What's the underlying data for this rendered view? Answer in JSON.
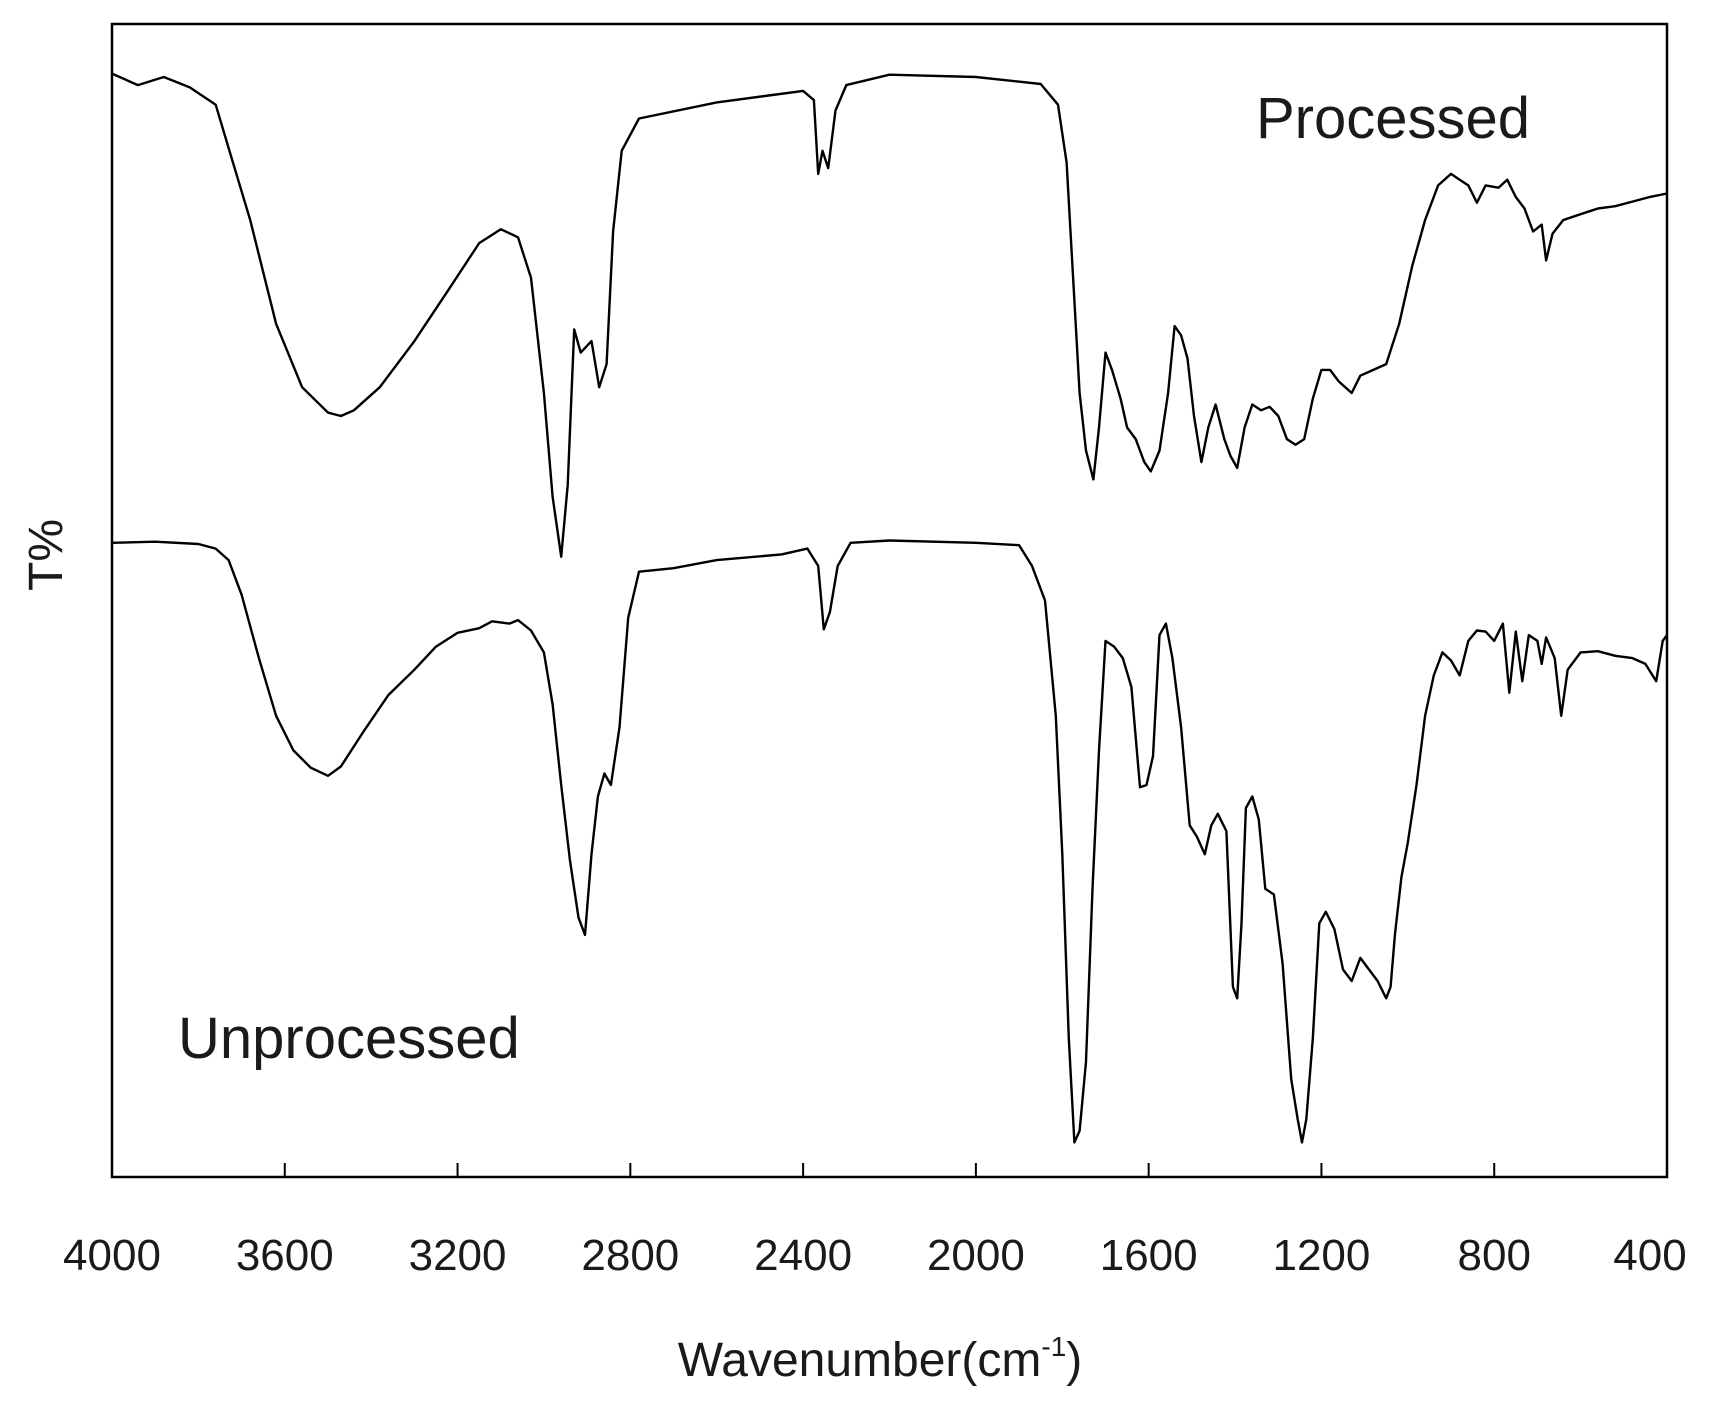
{
  "chart_data": {
    "type": "line",
    "title": "",
    "xlabel": "Wavenumber(cm",
    "xlabel_superscript": "-1",
    "xlabel_close": ")",
    "ylabel": "T%",
    "xlim": [
      4000,
      400
    ],
    "ylim": [
      0,
      100
    ],
    "x_reversed": true,
    "grid": false,
    "y_ticks_shown": false,
    "x_ticks": [
      {
        "value": 4000,
        "label": "4000"
      },
      {
        "value": 3600,
        "label": "3600"
      },
      {
        "value": 3200,
        "label": "3200"
      },
      {
        "value": 2800,
        "label": "2800"
      },
      {
        "value": 2400,
        "label": "2400"
      },
      {
        "value": 2000,
        "label": "2000"
      },
      {
        "value": 1600,
        "label": "1600"
      },
      {
        "value": 1200,
        "label": "1200"
      },
      {
        "value": 800,
        "label": "800"
      },
      {
        "value": 400,
        "label": "400"
      }
    ],
    "series": [
      {
        "name": "Processed",
        "color": "#000000",
        "label_position": "top-right",
        "points": [
          [
            4000,
            95.7
          ],
          [
            3940,
            94.7
          ],
          [
            3880,
            95.4
          ],
          [
            3820,
            94.5
          ],
          [
            3760,
            93.0
          ],
          [
            3720,
            88.0
          ],
          [
            3680,
            83.0
          ],
          [
            3620,
            74.0
          ],
          [
            3560,
            68.5
          ],
          [
            3500,
            66.3
          ],
          [
            3470,
            66.0
          ],
          [
            3440,
            66.5
          ],
          [
            3380,
            68.5
          ],
          [
            3300,
            72.5
          ],
          [
            3220,
            77.0
          ],
          [
            3150,
            81.0
          ],
          [
            3100,
            82.2
          ],
          [
            3060,
            81.5
          ],
          [
            3030,
            78.0
          ],
          [
            3000,
            68.0
          ],
          [
            2980,
            59.0
          ],
          [
            2960,
            53.8
          ],
          [
            2945,
            60.0
          ],
          [
            2930,
            73.5
          ],
          [
            2915,
            71.5
          ],
          [
            2890,
            72.5
          ],
          [
            2872,
            68.5
          ],
          [
            2855,
            70.5
          ],
          [
            2840,
            82.0
          ],
          [
            2820,
            89.0
          ],
          [
            2780,
            91.8
          ],
          [
            2600,
            93.2
          ],
          [
            2480,
            93.8
          ],
          [
            2400,
            94.2
          ],
          [
            2375,
            93.4
          ],
          [
            2365,
            87.0
          ],
          [
            2355,
            89.0
          ],
          [
            2342,
            87.5
          ],
          [
            2325,
            92.5
          ],
          [
            2300,
            94.7
          ],
          [
            2200,
            95.6
          ],
          [
            2000,
            95.4
          ],
          [
            1850,
            94.8
          ],
          [
            1810,
            93.0
          ],
          [
            1790,
            88.0
          ],
          [
            1775,
            78.0
          ],
          [
            1760,
            68.0
          ],
          [
            1745,
            63.0
          ],
          [
            1728,
            60.5
          ],
          [
            1715,
            65.0
          ],
          [
            1700,
            71.5
          ],
          [
            1685,
            70.0
          ],
          [
            1665,
            67.5
          ],
          [
            1650,
            65.0
          ],
          [
            1630,
            64.0
          ],
          [
            1610,
            62.0
          ],
          [
            1595,
            61.2
          ],
          [
            1575,
            63.0
          ],
          [
            1555,
            68.0
          ],
          [
            1540,
            73.8
          ],
          [
            1525,
            73.0
          ],
          [
            1510,
            71.0
          ],
          [
            1495,
            66.0
          ],
          [
            1478,
            62.0
          ],
          [
            1462,
            65.0
          ],
          [
            1445,
            67.0
          ],
          [
            1425,
            64.0
          ],
          [
            1410,
            62.5
          ],
          [
            1395,
            61.5
          ],
          [
            1378,
            65.0
          ],
          [
            1360,
            67.0
          ],
          [
            1340,
            66.5
          ],
          [
            1320,
            66.8
          ],
          [
            1300,
            66.0
          ],
          [
            1280,
            64.0
          ],
          [
            1260,
            63.5
          ],
          [
            1240,
            64.0
          ],
          [
            1220,
            67.5
          ],
          [
            1200,
            70.0
          ],
          [
            1180,
            70.0
          ],
          [
            1160,
            69.0
          ],
          [
            1130,
            68.0
          ],
          [
            1110,
            69.5
          ],
          [
            1080,
            70.0
          ],
          [
            1050,
            70.5
          ],
          [
            1020,
            74.0
          ],
          [
            990,
            79.0
          ],
          [
            960,
            83.0
          ],
          [
            930,
            86.0
          ],
          [
            900,
            87.0
          ],
          [
            880,
            86.5
          ],
          [
            860,
            86.0
          ],
          [
            840,
            84.5
          ],
          [
            820,
            86.0
          ],
          [
            790,
            85.8
          ],
          [
            770,
            86.5
          ],
          [
            750,
            85.0
          ],
          [
            730,
            84.0
          ],
          [
            710,
            82.0
          ],
          [
            690,
            82.6
          ],
          [
            680,
            79.5
          ],
          [
            665,
            81.8
          ],
          [
            640,
            83.0
          ],
          [
            600,
            83.5
          ],
          [
            560,
            84.0
          ],
          [
            520,
            84.2
          ],
          [
            480,
            84.6
          ],
          [
            440,
            85.0
          ],
          [
            400,
            85.3
          ]
        ]
      },
      {
        "name": "Unprocessed",
        "color": "#000000",
        "label_position": "bottom-left",
        "points": [
          [
            4000,
            55.0
          ],
          [
            3900,
            55.1
          ],
          [
            3800,
            54.9
          ],
          [
            3760,
            54.5
          ],
          [
            3730,
            53.5
          ],
          [
            3700,
            50.5
          ],
          [
            3660,
            45.0
          ],
          [
            3620,
            40.0
          ],
          [
            3580,
            37.0
          ],
          [
            3540,
            35.5
          ],
          [
            3500,
            34.8
          ],
          [
            3470,
            35.6
          ],
          [
            3420,
            38.5
          ],
          [
            3360,
            41.8
          ],
          [
            3300,
            44.0
          ],
          [
            3250,
            46.0
          ],
          [
            3200,
            47.2
          ],
          [
            3150,
            47.6
          ],
          [
            3120,
            48.2
          ],
          [
            3080,
            48.0
          ],
          [
            3060,
            48.3
          ],
          [
            3030,
            47.4
          ],
          [
            3000,
            45.5
          ],
          [
            2980,
            41.0
          ],
          [
            2960,
            34.0
          ],
          [
            2940,
            27.5
          ],
          [
            2920,
            22.5
          ],
          [
            2905,
            21.0
          ],
          [
            2890,
            28.0
          ],
          [
            2875,
            33.0
          ],
          [
            2860,
            35.0
          ],
          [
            2845,
            34.0
          ],
          [
            2825,
            39.0
          ],
          [
            2805,
            48.5
          ],
          [
            2780,
            52.5
          ],
          [
            2700,
            52.8
          ],
          [
            2600,
            53.5
          ],
          [
            2450,
            54.0
          ],
          [
            2390,
            54.5
          ],
          [
            2365,
            53.0
          ],
          [
            2352,
            47.5
          ],
          [
            2338,
            49.0
          ],
          [
            2320,
            53.0
          ],
          [
            2290,
            55.0
          ],
          [
            2200,
            55.2
          ],
          [
            2000,
            55.0
          ],
          [
            1900,
            54.8
          ],
          [
            1870,
            53.0
          ],
          [
            1840,
            50.0
          ],
          [
            1815,
            40.0
          ],
          [
            1800,
            28.0
          ],
          [
            1785,
            12.0
          ],
          [
            1772,
            3.0
          ],
          [
            1760,
            4.0
          ],
          [
            1745,
            10.0
          ],
          [
            1730,
            25.0
          ],
          [
            1715,
            37.0
          ],
          [
            1700,
            46.5
          ],
          [
            1680,
            46.0
          ],
          [
            1660,
            45.0
          ],
          [
            1640,
            42.5
          ],
          [
            1620,
            33.8
          ],
          [
            1605,
            34.0
          ],
          [
            1590,
            36.5
          ],
          [
            1575,
            47.0
          ],
          [
            1560,
            48.0
          ],
          [
            1545,
            45.0
          ],
          [
            1525,
            39.0
          ],
          [
            1505,
            30.5
          ],
          [
            1488,
            29.5
          ],
          [
            1470,
            28.0
          ],
          [
            1455,
            30.5
          ],
          [
            1440,
            31.5
          ],
          [
            1420,
            30.0
          ],
          [
            1405,
            16.5
          ],
          [
            1395,
            15.5
          ],
          [
            1385,
            22.0
          ],
          [
            1375,
            32.0
          ],
          [
            1360,
            33.0
          ],
          [
            1345,
            31.0
          ],
          [
            1330,
            25.0
          ],
          [
            1310,
            24.5
          ],
          [
            1290,
            18.5
          ],
          [
            1270,
            8.5
          ],
          [
            1255,
            5.0
          ],
          [
            1245,
            3.0
          ],
          [
            1235,
            5.0
          ],
          [
            1220,
            12.0
          ],
          [
            1205,
            22.0
          ],
          [
            1190,
            23.0
          ],
          [
            1170,
            21.5
          ],
          [
            1150,
            18.0
          ],
          [
            1130,
            17.0
          ],
          [
            1110,
            19.0
          ],
          [
            1090,
            18.0
          ],
          [
            1070,
            17.0
          ],
          [
            1050,
            15.5
          ],
          [
            1040,
            16.5
          ],
          [
            1030,
            21.0
          ],
          [
            1015,
            26.0
          ],
          [
            1000,
            29.0
          ],
          [
            980,
            34.0
          ],
          [
            960,
            40.0
          ],
          [
            940,
            43.5
          ],
          [
            920,
            45.5
          ],
          [
            900,
            44.8
          ],
          [
            880,
            43.5
          ],
          [
            860,
            46.5
          ],
          [
            840,
            47.4
          ],
          [
            820,
            47.3
          ],
          [
            800,
            46.5
          ],
          [
            780,
            48.0
          ],
          [
            765,
            42.0
          ],
          [
            750,
            47.3
          ],
          [
            735,
            43.0
          ],
          [
            720,
            47.0
          ],
          [
            700,
            46.5
          ],
          [
            690,
            44.5
          ],
          [
            680,
            46.8
          ],
          [
            660,
            45.0
          ],
          [
            645,
            40.0
          ],
          [
            630,
            44.0
          ],
          [
            600,
            45.5
          ],
          [
            560,
            45.6
          ],
          [
            520,
            45.2
          ],
          [
            480,
            45.0
          ],
          [
            450,
            44.5
          ],
          [
            425,
            43.0
          ],
          [
            410,
            46.5
          ],
          [
            400,
            47.0
          ]
        ]
      }
    ]
  }
}
